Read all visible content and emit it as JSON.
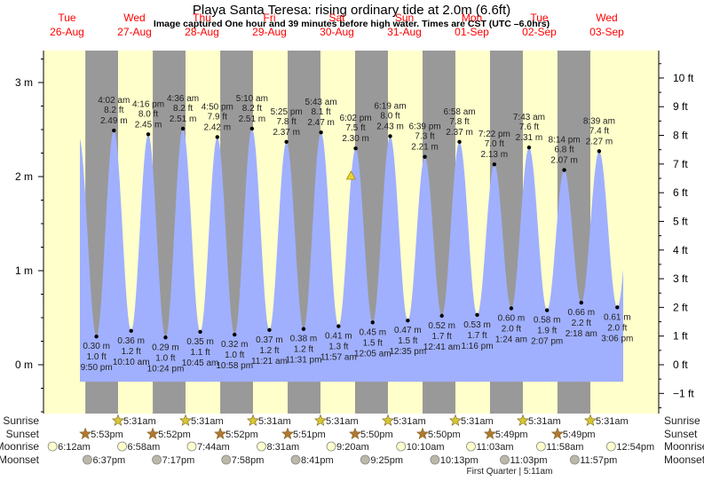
{
  "chart_data": {
    "type": "area",
    "title": "Playa Santa Teresa: rising  ordinary tide at 2.0m (6.6ft)",
    "subtitle": "Image captured One hour and 39 minutes before high water. Times are CST (UTC –6.0hrs)",
    "days": [
      {
        "weekday": "Tue",
        "date": "26-Aug"
      },
      {
        "weekday": "Wed",
        "date": "27-Aug"
      },
      {
        "weekday": "Thu",
        "date": "28-Aug"
      },
      {
        "weekday": "Fri",
        "date": "29-Aug"
      },
      {
        "weekday": "Sat",
        "date": "30-Aug"
      },
      {
        "weekday": "Sun",
        "date": "31-Aug"
      },
      {
        "weekday": "Mon",
        "date": "01-Sep"
      },
      {
        "weekday": "Tue",
        "date": "02-Sep"
      },
      {
        "weekday": "Wed",
        "date": "03-Sep"
      }
    ],
    "y_left": {
      "unit": "m",
      "ticks": [
        "0 m",
        "1 m",
        "2 m",
        "3 m"
      ],
      "range_m": [
        -0.5,
        3.35
      ]
    },
    "y_right": {
      "unit": "ft",
      "ticks": [
        "−1 ft",
        "0 ft",
        "1 ft",
        "2 ft",
        "3 ft",
        "4 ft",
        "5 ft",
        "6 ft",
        "7 ft",
        "8 ft",
        "9 ft",
        "10 ft"
      ]
    },
    "current": {
      "level_m": 2.0,
      "date": "30-Aug",
      "time": "4:23 pm",
      "state": "rising"
    },
    "tides": [
      {
        "type": "low",
        "date": "26-Aug",
        "time": "9:50 pm",
        "m": "0.30 m",
        "ft": "1.0 ft"
      },
      {
        "type": "high",
        "date": "27-Aug",
        "time": "4:02 am",
        "m": "2.49 m",
        "ft": "8.2 ft"
      },
      {
        "type": "low",
        "date": "27-Aug",
        "time": "10:10 am",
        "m": "0.36 m",
        "ft": "1.2 ft"
      },
      {
        "type": "high",
        "date": "27-Aug",
        "time": "4:16 pm",
        "m": "2.45 m",
        "ft": "8.0 ft"
      },
      {
        "type": "low",
        "date": "27-Aug",
        "time": "10:24 pm",
        "m": "0.29 m",
        "ft": "1.0 ft"
      },
      {
        "type": "high",
        "date": "28-Aug",
        "time": "4:36 am",
        "m": "2.51 m",
        "ft": "8.2 ft"
      },
      {
        "type": "low",
        "date": "28-Aug",
        "time": "10:45 am",
        "m": "0.35 m",
        "ft": "1.1 ft"
      },
      {
        "type": "high",
        "date": "28-Aug",
        "time": "4:50 pm",
        "m": "2.42 m",
        "ft": "7.9 ft"
      },
      {
        "type": "low",
        "date": "28-Aug",
        "time": "10:58 pm",
        "m": "0.32 m",
        "ft": "1.0 ft"
      },
      {
        "type": "high",
        "date": "29-Aug",
        "time": "5:10 am",
        "m": "2.51 m",
        "ft": "8.2 ft"
      },
      {
        "type": "low",
        "date": "29-Aug",
        "time": "11:21 am",
        "m": "0.37 m",
        "ft": "1.2 ft"
      },
      {
        "type": "high",
        "date": "29-Aug",
        "time": "5:25 pm",
        "m": "2.37 m",
        "ft": "7.8 ft"
      },
      {
        "type": "low",
        "date": "29-Aug",
        "time": "11:31 pm",
        "m": "0.38 m",
        "ft": "1.2 ft"
      },
      {
        "type": "high",
        "date": "30-Aug",
        "time": "5:43 am",
        "m": "2.47 m",
        "ft": "8.1 ft"
      },
      {
        "type": "low",
        "date": "30-Aug",
        "time": "11:57 am",
        "m": "0.41 m",
        "ft": "1.3 ft"
      },
      {
        "type": "high",
        "date": "30-Aug",
        "time": "6:02 pm",
        "m": "2.30 m",
        "ft": "7.5 ft"
      },
      {
        "type": "low",
        "date": "31-Aug",
        "time": "12:05 am",
        "m": "0.45 m",
        "ft": "1.5 ft"
      },
      {
        "type": "high",
        "date": "31-Aug",
        "time": "6:19 am",
        "m": "2.43 m",
        "ft": "8.0 ft"
      },
      {
        "type": "low",
        "date": "31-Aug",
        "time": "12:35 pm",
        "m": "0.47 m",
        "ft": "1.5 ft"
      },
      {
        "type": "high",
        "date": "31-Aug",
        "time": "6:39 pm",
        "m": "2.21 m",
        "ft": "7.3 ft"
      },
      {
        "type": "low",
        "date": "01-Sep",
        "time": "12:41 am",
        "m": "0.52 m",
        "ft": "1.7 ft"
      },
      {
        "type": "high",
        "date": "01-Sep",
        "time": "6:58 am",
        "m": "2.37 m",
        "ft": "7.8 ft"
      },
      {
        "type": "low",
        "date": "01-Sep",
        "time": "1:16 pm",
        "m": "0.53 m",
        "ft": "1.7 ft"
      },
      {
        "type": "high",
        "date": "01-Sep",
        "time": "7:22 pm",
        "m": "2.13 m",
        "ft": "7.0 ft"
      },
      {
        "type": "low",
        "date": "02-Sep",
        "time": "1:24 am",
        "m": "0.60 m",
        "ft": "2.0 ft"
      },
      {
        "type": "high",
        "date": "02-Sep",
        "time": "7:43 am",
        "m": "2.31 m",
        "ft": "7.6 ft"
      },
      {
        "type": "low",
        "date": "02-Sep",
        "time": "2:07 pm",
        "m": "0.58 m",
        "ft": "1.9 ft"
      },
      {
        "type": "high",
        "date": "02-Sep",
        "time": "8:14 pm",
        "m": "2.07 m",
        "ft": "6.8 ft"
      },
      {
        "type": "low",
        "date": "03-Sep",
        "time": "2:18 am",
        "m": "0.66 m",
        "ft": "2.2 ft"
      },
      {
        "type": "high",
        "date": "03-Sep",
        "time": "8:39 am",
        "m": "2.27 m",
        "ft": "7.4 ft"
      },
      {
        "type": "low",
        "date": "03-Sep",
        "time": "3:06 pm",
        "m": "0.61 m",
        "ft": "2.0 ft"
      }
    ],
    "rows": {
      "sunrise": {
        "label": "Sunrise",
        "events": [
          {
            "date": "27-Aug",
            "time": "5:31am"
          },
          {
            "date": "28-Aug",
            "time": "5:31am"
          },
          {
            "date": "29-Aug",
            "time": "5:31am"
          },
          {
            "date": "30-Aug",
            "time": "5:31am"
          },
          {
            "date": "31-Aug",
            "time": "5:31am"
          },
          {
            "date": "01-Sep",
            "time": "5:31am"
          },
          {
            "date": "02-Sep",
            "time": "5:31am"
          },
          {
            "date": "03-Sep",
            "time": "5:31am"
          }
        ]
      },
      "sunset": {
        "label": "Sunset",
        "events": [
          {
            "date": "26-Aug",
            "time": "5:53pm"
          },
          {
            "date": "27-Aug",
            "time": "5:52pm"
          },
          {
            "date": "28-Aug",
            "time": "5:52pm"
          },
          {
            "date": "29-Aug",
            "time": "5:51pm"
          },
          {
            "date": "30-Aug",
            "time": "5:50pm"
          },
          {
            "date": "31-Aug",
            "time": "5:50pm"
          },
          {
            "date": "01-Sep",
            "time": "5:49pm"
          },
          {
            "date": "02-Sep",
            "time": "5:49pm"
          }
        ]
      },
      "moonrise": {
        "label": "Moonrise",
        "events": [
          {
            "date": "26-Aug",
            "time": "6:12am"
          },
          {
            "date": "27-Aug",
            "time": "6:58am"
          },
          {
            "date": "28-Aug",
            "time": "7:44am"
          },
          {
            "date": "29-Aug",
            "time": "8:31am"
          },
          {
            "date": "30-Aug",
            "time": "9:20am"
          },
          {
            "date": "31-Aug",
            "time": "10:10am"
          },
          {
            "date": "01-Sep",
            "time": "11:03am"
          },
          {
            "date": "02-Sep",
            "time": "11:58am"
          },
          {
            "date": "03-Sep",
            "time": "12:54pm"
          }
        ]
      },
      "moonset": {
        "label": "Moonset",
        "events": [
          {
            "date": "26-Aug",
            "time": "6:37pm"
          },
          {
            "date": "27-Aug",
            "time": "7:17pm"
          },
          {
            "date": "28-Aug",
            "time": "7:58pm"
          },
          {
            "date": "29-Aug",
            "time": "8:41pm"
          },
          {
            "date": "30-Aug",
            "time": "9:25pm"
          },
          {
            "date": "31-Aug",
            "time": "10:13pm"
          },
          {
            "date": "01-Sep",
            "time": "11:03pm"
          },
          {
            "date": "02-Sep",
            "time": "11:57pm"
          }
        ]
      }
    },
    "moon_phase": "First Quarter | 5:11am",
    "colors": {
      "water": "#a0b0ff",
      "day": "#ffffcc",
      "night": "#999999",
      "header": "#ff0000",
      "sun": "#d4c830",
      "sunset": "#b07830",
      "moonrise": "#ffffcc",
      "moonset": "#bbb8a8"
    }
  }
}
